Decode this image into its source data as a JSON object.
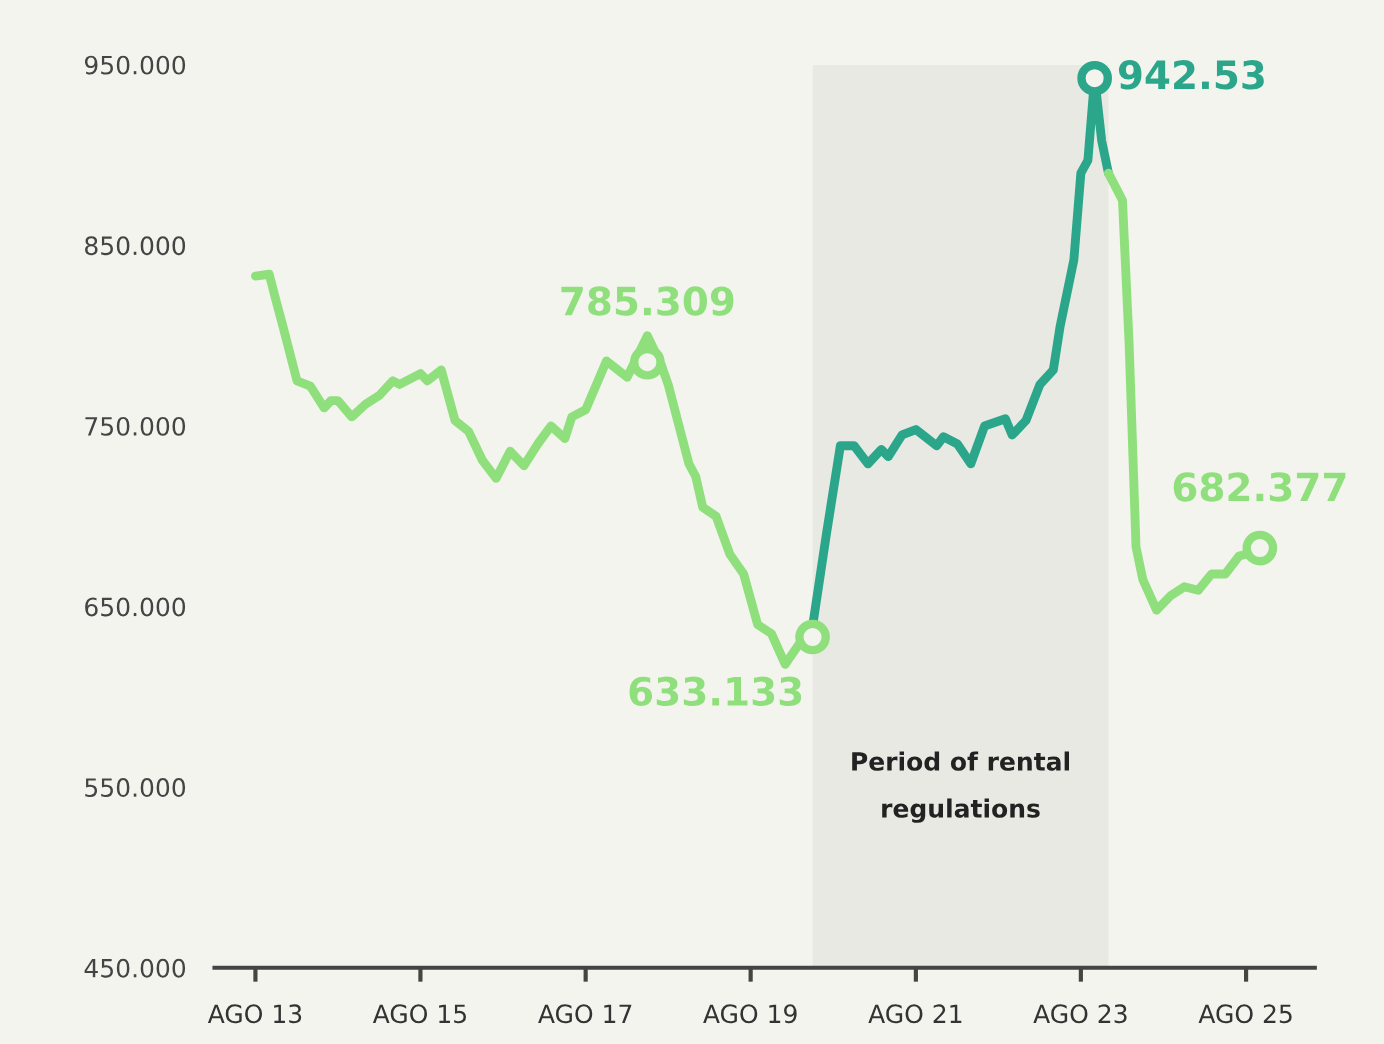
{
  "chart_data": {
    "type": "line",
    "xlim": [
      "2013-02",
      "2026-06"
    ],
    "ylim": [
      450,
      950
    ],
    "xticks": [
      {
        "value": "2013-08",
        "label": "AGO 13"
      },
      {
        "value": "2015-08",
        "label": "AGO 15"
      },
      {
        "value": "2017-08",
        "label": "AGO 17"
      },
      {
        "value": "2019-08",
        "label": "AGO 19"
      },
      {
        "value": "2021-08",
        "label": "AGO 21"
      },
      {
        "value": "2023-08",
        "label": "AGO 23"
      },
      {
        "value": "2025-08",
        "label": "AGO 25"
      }
    ],
    "yticks": [
      {
        "value": 450,
        "label": "450.000"
      },
      {
        "value": 550,
        "label": "550.000"
      },
      {
        "value": 650,
        "label": "650.000"
      },
      {
        "value": 750,
        "label": "750.000"
      },
      {
        "value": 850,
        "label": "850.000"
      },
      {
        "value": 950,
        "label": "950.000"
      }
    ],
    "grid": false,
    "marker": "none",
    "line_style": "solid",
    "bands": [
      {
        "axis": "x",
        "from": "2020-05",
        "to": "2023-12",
        "label": "Period of rental\nregulations",
        "color": "#e9e9e3"
      }
    ],
    "series": [
      {
        "color": "#8fe07c",
        "x": [
          "2013-08",
          "2013-10",
          "2013-11",
          "2013-12",
          "2014-02",
          "2014-04",
          "2014-06",
          "2014-07",
          "2014-08",
          "2014-10",
          "2014-12",
          "2015-02",
          "2015-04",
          "2015-05",
          "2015-08",
          "2015-09",
          "2015-11",
          "2016-01",
          "2016-03",
          "2016-05",
          "2016-07",
          "2016-09",
          "2016-11",
          "2017-01",
          "2017-03",
          "2017-05",
          "2017-06",
          "2017-08",
          "2017-11",
          "2018-02",
          "2018-05",
          "2018-07",
          "2018-08",
          "2018-11",
          "2018-12",
          "2019-01",
          "2019-03",
          "2019-05",
          "2019-07",
          "2019-09",
          "2019-11",
          "2020-01",
          "2020-03",
          "2020-05"
        ],
        "values": [
          833,
          834,
          819,
          805,
          775,
          772,
          760,
          764,
          764,
          755,
          762,
          767,
          775,
          773,
          779,
          775,
          781,
          753,
          747,
          731,
          721,
          736,
          728,
          740,
          750,
          743,
          755,
          759,
          786,
          777,
          800,
          784,
          773,
          729,
          722,
          705,
          700,
          679,
          668,
          640,
          635,
          618,
          629,
          639
        ]
      },
      {
        "color": "#2ba68a",
        "x": [
          "2020-05",
          "2020-07",
          "2020-09",
          "2020-11",
          "2021-01",
          "2021-03",
          "2021-04",
          "2021-06",
          "2021-08",
          "2021-11",
          "2021-12",
          "2022-02",
          "2022-04",
          "2022-06",
          "2022-09",
          "2022-10",
          "2022-12",
          "2023-02",
          "2023-04",
          "2023-05",
          "2023-07",
          "2023-08",
          "2023-09",
          "2023-10",
          "2023-11",
          "2023-12"
        ],
        "values": [
          639,
          690,
          739,
          739,
          729,
          737,
          733,
          745,
          748,
          739,
          744,
          740,
          729,
          750,
          754,
          745,
          753,
          773,
          781,
          805,
          842,
          890,
          897,
          943,
          908,
          890
        ]
      },
      {
        "color": "#8fe07c",
        "x": [
          "2023-12",
          "2024-02",
          "2024-03",
          "2024-04",
          "2024-05",
          "2024-07",
          "2024-09",
          "2024-11",
          "2025-01",
          "2025-03",
          "2025-05",
          "2025-07",
          "2025-10"
        ],
        "values": [
          890,
          875,
          797,
          683,
          665,
          648,
          656,
          661,
          659,
          668,
          668,
          678,
          681
        ]
      },
      {
        "type": "scatter",
        "marker": "circle",
        "colors": [
          "#8fe07c",
          "#8fe07c",
          "#2ba68a",
          "#8fe07c"
        ],
        "x": [
          "2018-05",
          "2020-05",
          "2023-10",
          "2025-10"
        ],
        "values": [
          785.309,
          633.133,
          942.53,
          682.377
        ],
        "value_labels": [
          "785.309",
          "633.133",
          "942.53",
          "682.377"
        ]
      }
    ]
  }
}
